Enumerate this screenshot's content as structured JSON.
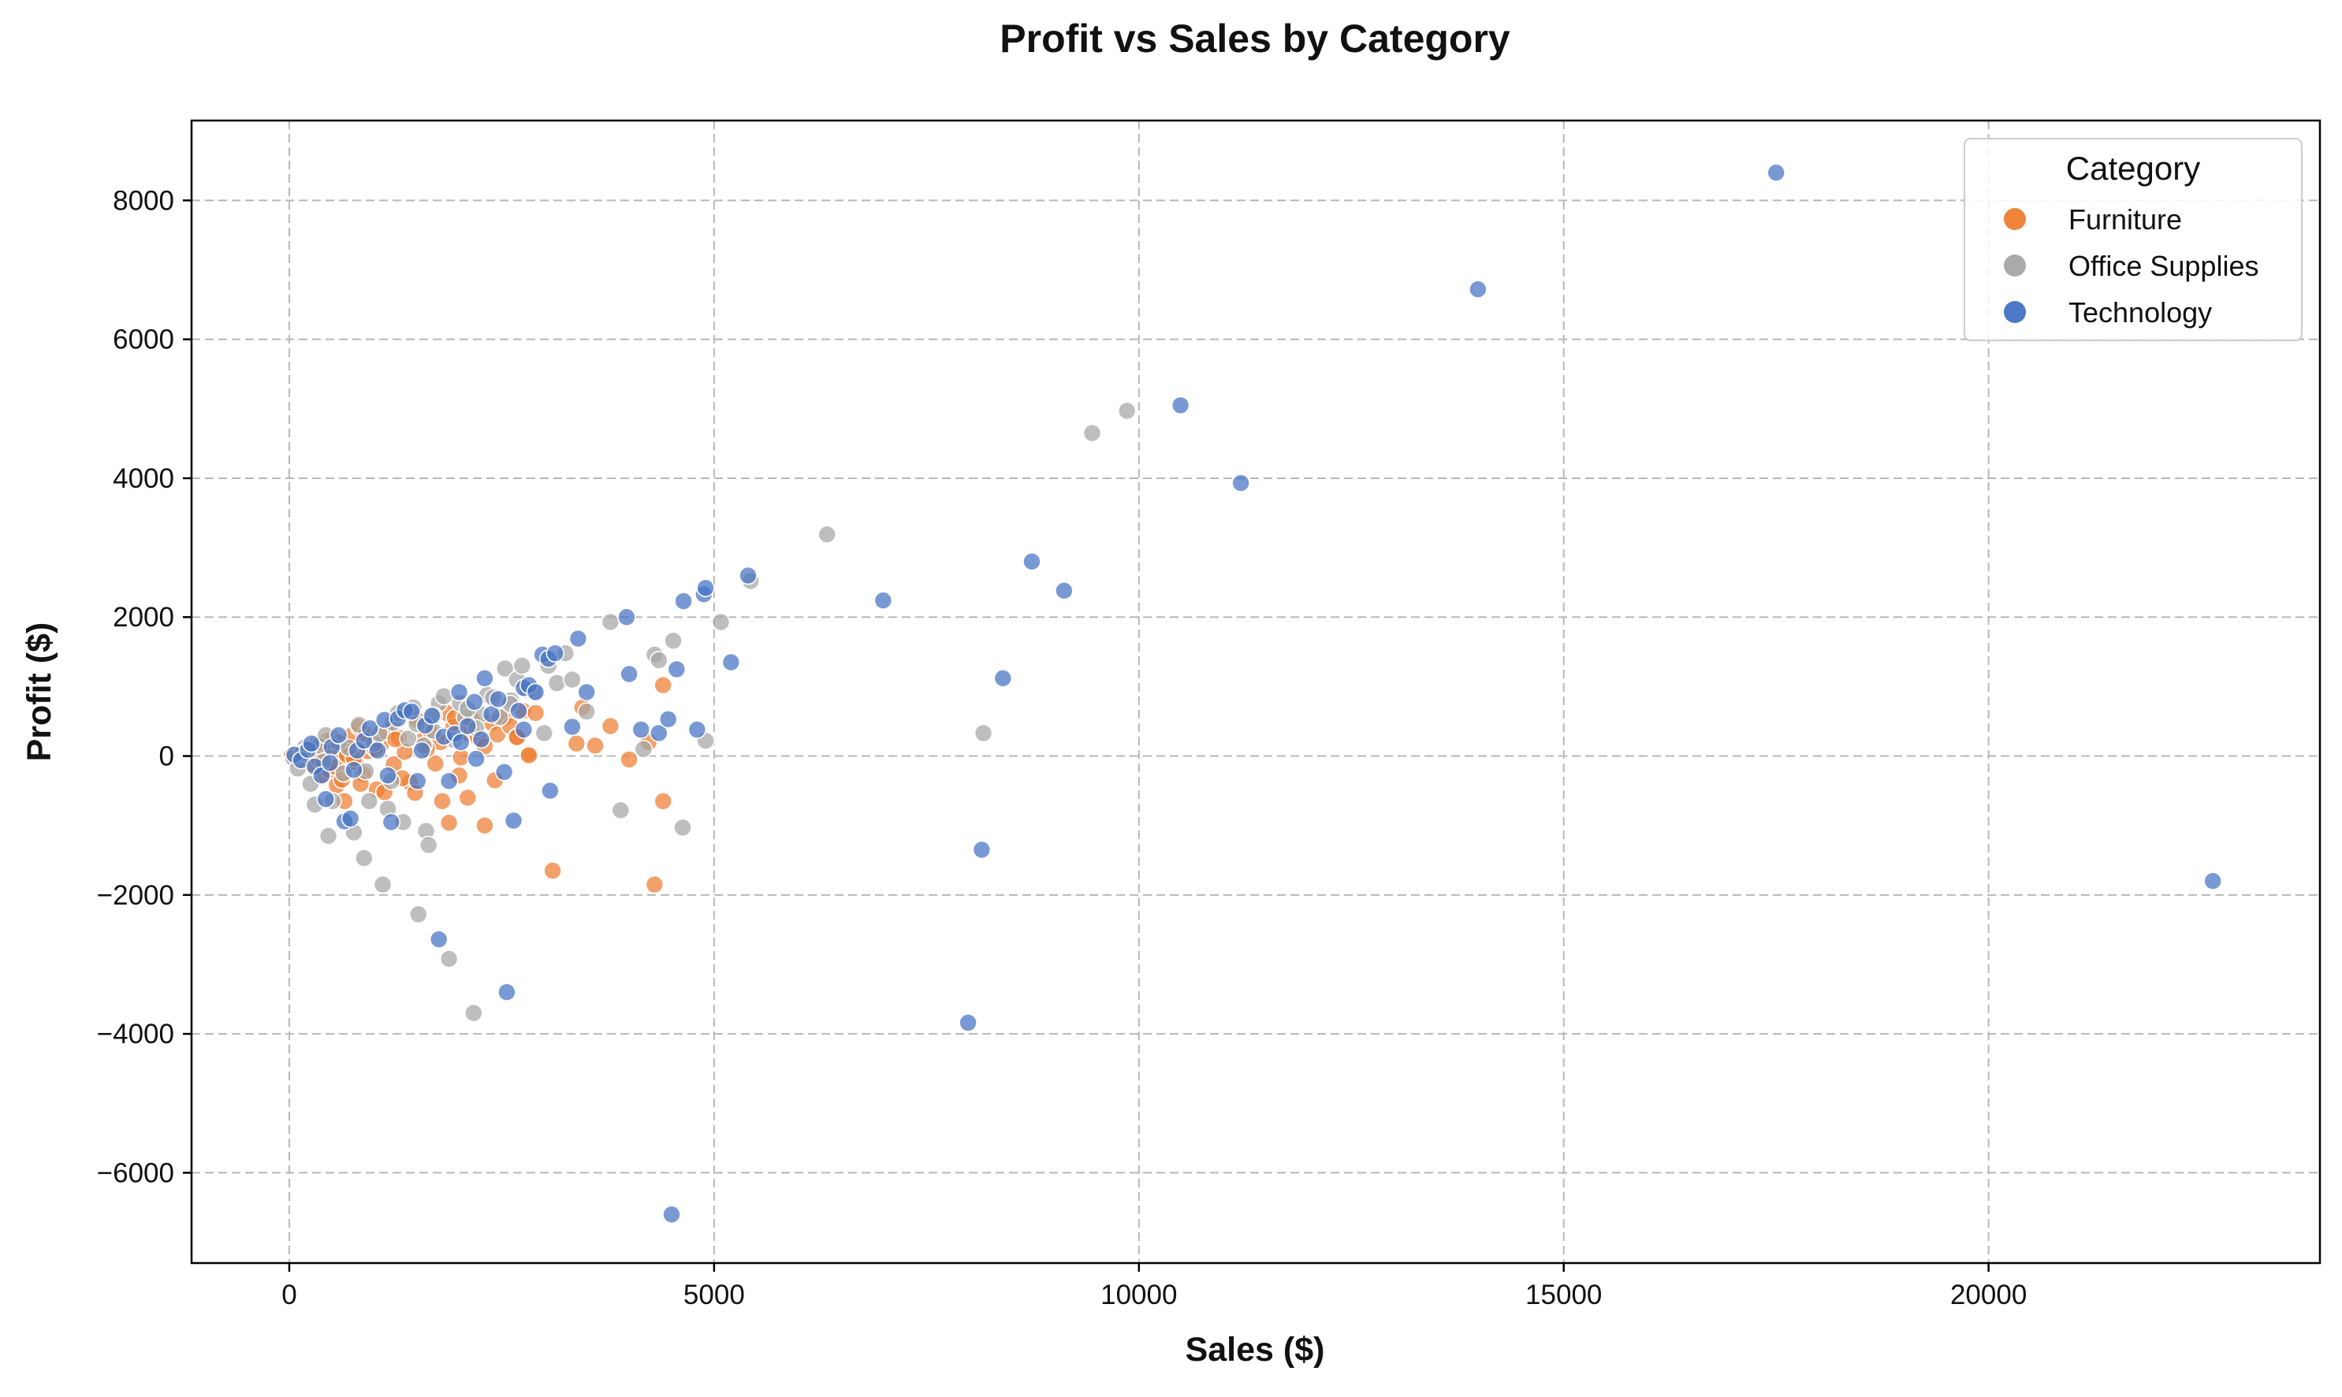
{
  "chart_data": {
    "type": "scatter",
    "title": "Profit vs Sales by Category",
    "xlabel": "Sales ($)",
    "ylabel": "Profit ($)",
    "xlim": [
      -1150,
      23900
    ],
    "ylim": [
      -7300,
      9150
    ],
    "xticks": [
      0,
      5000,
      10000,
      15000,
      20000
    ],
    "yticks": [
      -6000,
      -4000,
      -2000,
      0,
      2000,
      4000,
      6000,
      8000
    ],
    "xtick_labels": [
      "0",
      "5000",
      "10000",
      "15000",
      "20000"
    ],
    "ytick_labels": [
      "−6000",
      "−4000",
      "−2000",
      "0",
      "2000",
      "4000",
      "6000",
      "8000"
    ],
    "grid": true,
    "legend": {
      "title": "Category",
      "placement": "top-right"
    },
    "series": [
      {
        "name": "Furniture",
        "color": "#ED7D31",
        "points": [
          [
            30,
            10
          ],
          [
            120,
            -50
          ],
          [
            200,
            60
          ],
          [
            280,
            -120
          ],
          [
            330,
            180
          ],
          [
            380,
            -300
          ],
          [
            420,
            90
          ],
          [
            470,
            -200
          ],
          [
            520,
            250
          ],
          [
            560,
            -420
          ],
          [
            600,
            40
          ],
          [
            650,
            -650
          ],
          [
            700,
            150
          ],
          [
            740,
            300
          ],
          [
            780,
            -80
          ],
          [
            820,
            420
          ],
          [
            870,
            -260
          ],
          [
            920,
            70
          ],
          [
            980,
            230
          ],
          [
            1030,
            -480
          ],
          [
            1080,
            170
          ],
          [
            1150,
            350
          ],
          [
            1230,
            -120
          ],
          [
            1290,
            260
          ],
          [
            1360,
            60
          ],
          [
            1420,
            -380
          ],
          [
            1500,
            520
          ],
          [
            1580,
            230
          ],
          [
            1650,
            380
          ],
          [
            1720,
            -110
          ],
          [
            1780,
            200
          ],
          [
            1850,
            620
          ],
          [
            1930,
            420
          ],
          [
            2000,
            -280
          ],
          [
            2080,
            330
          ],
          [
            2150,
            520
          ],
          [
            2220,
            270
          ],
          [
            2300,
            140
          ],
          [
            2380,
            480
          ],
          [
            2450,
            310
          ],
          [
            2530,
            550
          ],
          [
            2600,
            430
          ],
          [
            2680,
            280
          ],
          [
            2750,
            650
          ],
          [
            2820,
            30
          ],
          [
            2900,
            620
          ],
          [
            350,
            -50
          ],
          [
            450,
            220
          ],
          [
            550,
            -160
          ],
          [
            620,
            -340
          ],
          [
            680,
            10
          ],
          [
            760,
            -30
          ],
          [
            840,
            -400
          ],
          [
            900,
            320
          ],
          [
            1010,
            100
          ],
          [
            1120,
            -520
          ],
          [
            1250,
            240
          ],
          [
            1330,
            -320
          ],
          [
            1480,
            -530
          ],
          [
            1620,
            100
          ],
          [
            1800,
            -650
          ],
          [
            1880,
            -960
          ],
          [
            2100,
            -600
          ],
          [
            2300,
            -1000
          ],
          [
            2420,
            -350
          ],
          [
            2680,
            270
          ],
          [
            2820,
            10
          ],
          [
            3100,
            -1650
          ],
          [
            3380,
            180
          ],
          [
            3450,
            700
          ],
          [
            3600,
            150
          ],
          [
            3780,
            430
          ],
          [
            4000,
            -50
          ],
          [
            4230,
            200
          ],
          [
            4300,
            -1850
          ],
          [
            4400,
            -650
          ],
          [
            4400,
            1020
          ],
          [
            2020,
            -20
          ],
          [
            1950,
            550
          ]
        ]
      },
      {
        "name": "Office Supplies",
        "color": "#A5A5A5",
        "points": [
          [
            50,
            -30
          ],
          [
            100,
            -180
          ],
          [
            180,
            120
          ],
          [
            250,
            -400
          ],
          [
            300,
            -700
          ],
          [
            350,
            150
          ],
          [
            430,
            300
          ],
          [
            460,
            -1150
          ],
          [
            510,
            -650
          ],
          [
            580,
            200
          ],
          [
            640,
            -250
          ],
          [
            700,
            120
          ],
          [
            760,
            -1100
          ],
          [
            820,
            450
          ],
          [
            880,
            -1470
          ],
          [
            940,
            -650
          ],
          [
            1000,
            180
          ],
          [
            1060,
            320
          ],
          [
            1100,
            -1850
          ],
          [
            1160,
            -760
          ],
          [
            1220,
            480
          ],
          [
            1280,
            620
          ],
          [
            1340,
            -950
          ],
          [
            1400,
            250
          ],
          [
            1460,
            700
          ],
          [
            1520,
            -2280
          ],
          [
            1580,
            150
          ],
          [
            1610,
            -1080
          ],
          [
            1640,
            -1280
          ],
          [
            1700,
            360
          ],
          [
            1760,
            760
          ],
          [
            1820,
            860
          ],
          [
            1880,
            -2920
          ],
          [
            1940,
            230
          ],
          [
            2010,
            760
          ],
          [
            2070,
            560
          ],
          [
            2170,
            -3700
          ],
          [
            2260,
            600
          ],
          [
            2330,
            880
          ],
          [
            2400,
            840
          ],
          [
            2480,
            560
          ],
          [
            2540,
            1260
          ],
          [
            2610,
            800
          ],
          [
            2680,
            1100
          ],
          [
            2740,
            1300
          ],
          [
            2800,
            950
          ],
          [
            2880,
            920
          ],
          [
            3000,
            330
          ],
          [
            3050,
            1300
          ],
          [
            3150,
            1050
          ],
          [
            3250,
            1480
          ],
          [
            3330,
            1100
          ],
          [
            3500,
            640
          ],
          [
            3780,
            1930
          ],
          [
            3900,
            -780
          ],
          [
            4170,
            100
          ],
          [
            4300,
            1460
          ],
          [
            4350,
            1380
          ],
          [
            4520,
            1660
          ],
          [
            4630,
            -1030
          ],
          [
            4900,
            220
          ],
          [
            5080,
            1930
          ],
          [
            5430,
            2520
          ],
          [
            6330,
            3190
          ],
          [
            8170,
            330
          ],
          [
            9450,
            4650
          ],
          [
            9860,
            4970
          ],
          [
            150,
            40
          ],
          [
            400,
            -80
          ],
          [
            900,
            -220
          ],
          [
            1200,
            -360
          ],
          [
            1500,
            460
          ],
          [
            1700,
            580
          ],
          [
            2100,
            680
          ],
          [
            2200,
            400
          ],
          [
            2600,
            750
          ]
        ]
      },
      {
        "name": "Technology",
        "color": "#4472C4",
        "points": [
          [
            60,
            20
          ],
          [
            140,
            -60
          ],
          [
            220,
            90
          ],
          [
            300,
            -150
          ],
          [
            380,
            -280
          ],
          [
            430,
            -620
          ],
          [
            500,
            130
          ],
          [
            580,
            300
          ],
          [
            650,
            -940
          ],
          [
            720,
            -900
          ],
          [
            800,
            80
          ],
          [
            880,
            220
          ],
          [
            950,
            400
          ],
          [
            1040,
            80
          ],
          [
            1120,
            520
          ],
          [
            1200,
            -950
          ],
          [
            1280,
            540
          ],
          [
            1360,
            660
          ],
          [
            1440,
            640
          ],
          [
            1510,
            -360
          ],
          [
            1600,
            440
          ],
          [
            1680,
            580
          ],
          [
            1760,
            -2640
          ],
          [
            1820,
            280
          ],
          [
            1880,
            -360
          ],
          [
            1950,
            320
          ],
          [
            2000,
            920
          ],
          [
            2100,
            430
          ],
          [
            2180,
            780
          ],
          [
            2260,
            240
          ],
          [
            2300,
            1120
          ],
          [
            2380,
            600
          ],
          [
            2460,
            820
          ],
          [
            2530,
            -230
          ],
          [
            2560,
            -3400
          ],
          [
            2640,
            -930
          ],
          [
            2700,
            650
          ],
          [
            2760,
            980
          ],
          [
            2820,
            1020
          ],
          [
            2900,
            920
          ],
          [
            2980,
            1460
          ],
          [
            3050,
            1400
          ],
          [
            3070,
            -500
          ],
          [
            3130,
            1480
          ],
          [
            3400,
            1690
          ],
          [
            3500,
            920
          ],
          [
            3970,
            2000
          ],
          [
            4000,
            1180
          ],
          [
            4140,
            380
          ],
          [
            4350,
            330
          ],
          [
            4460,
            530
          ],
          [
            4500,
            -6600
          ],
          [
            4560,
            1250
          ],
          [
            4640,
            2230
          ],
          [
            4800,
            380
          ],
          [
            4880,
            2330
          ],
          [
            4900,
            2420
          ],
          [
            5200,
            1350
          ],
          [
            5400,
            2600
          ],
          [
            6990,
            2240
          ],
          [
            7990,
            -3840
          ],
          [
            8150,
            -1350
          ],
          [
            8400,
            1120
          ],
          [
            8740,
            2800
          ],
          [
            9120,
            2380
          ],
          [
            10490,
            5050
          ],
          [
            11200,
            3930
          ],
          [
            13990,
            6720
          ],
          [
            17500,
            8400
          ],
          [
            22640,
            -1800
          ],
          [
            260,
            180
          ],
          [
            480,
            -100
          ],
          [
            760,
            -200
          ],
          [
            1160,
            -280
          ],
          [
            1560,
            80
          ],
          [
            2020,
            200
          ],
          [
            2200,
            -40
          ],
          [
            2760,
            380
          ],
          [
            3330,
            420
          ]
        ]
      }
    ]
  }
}
